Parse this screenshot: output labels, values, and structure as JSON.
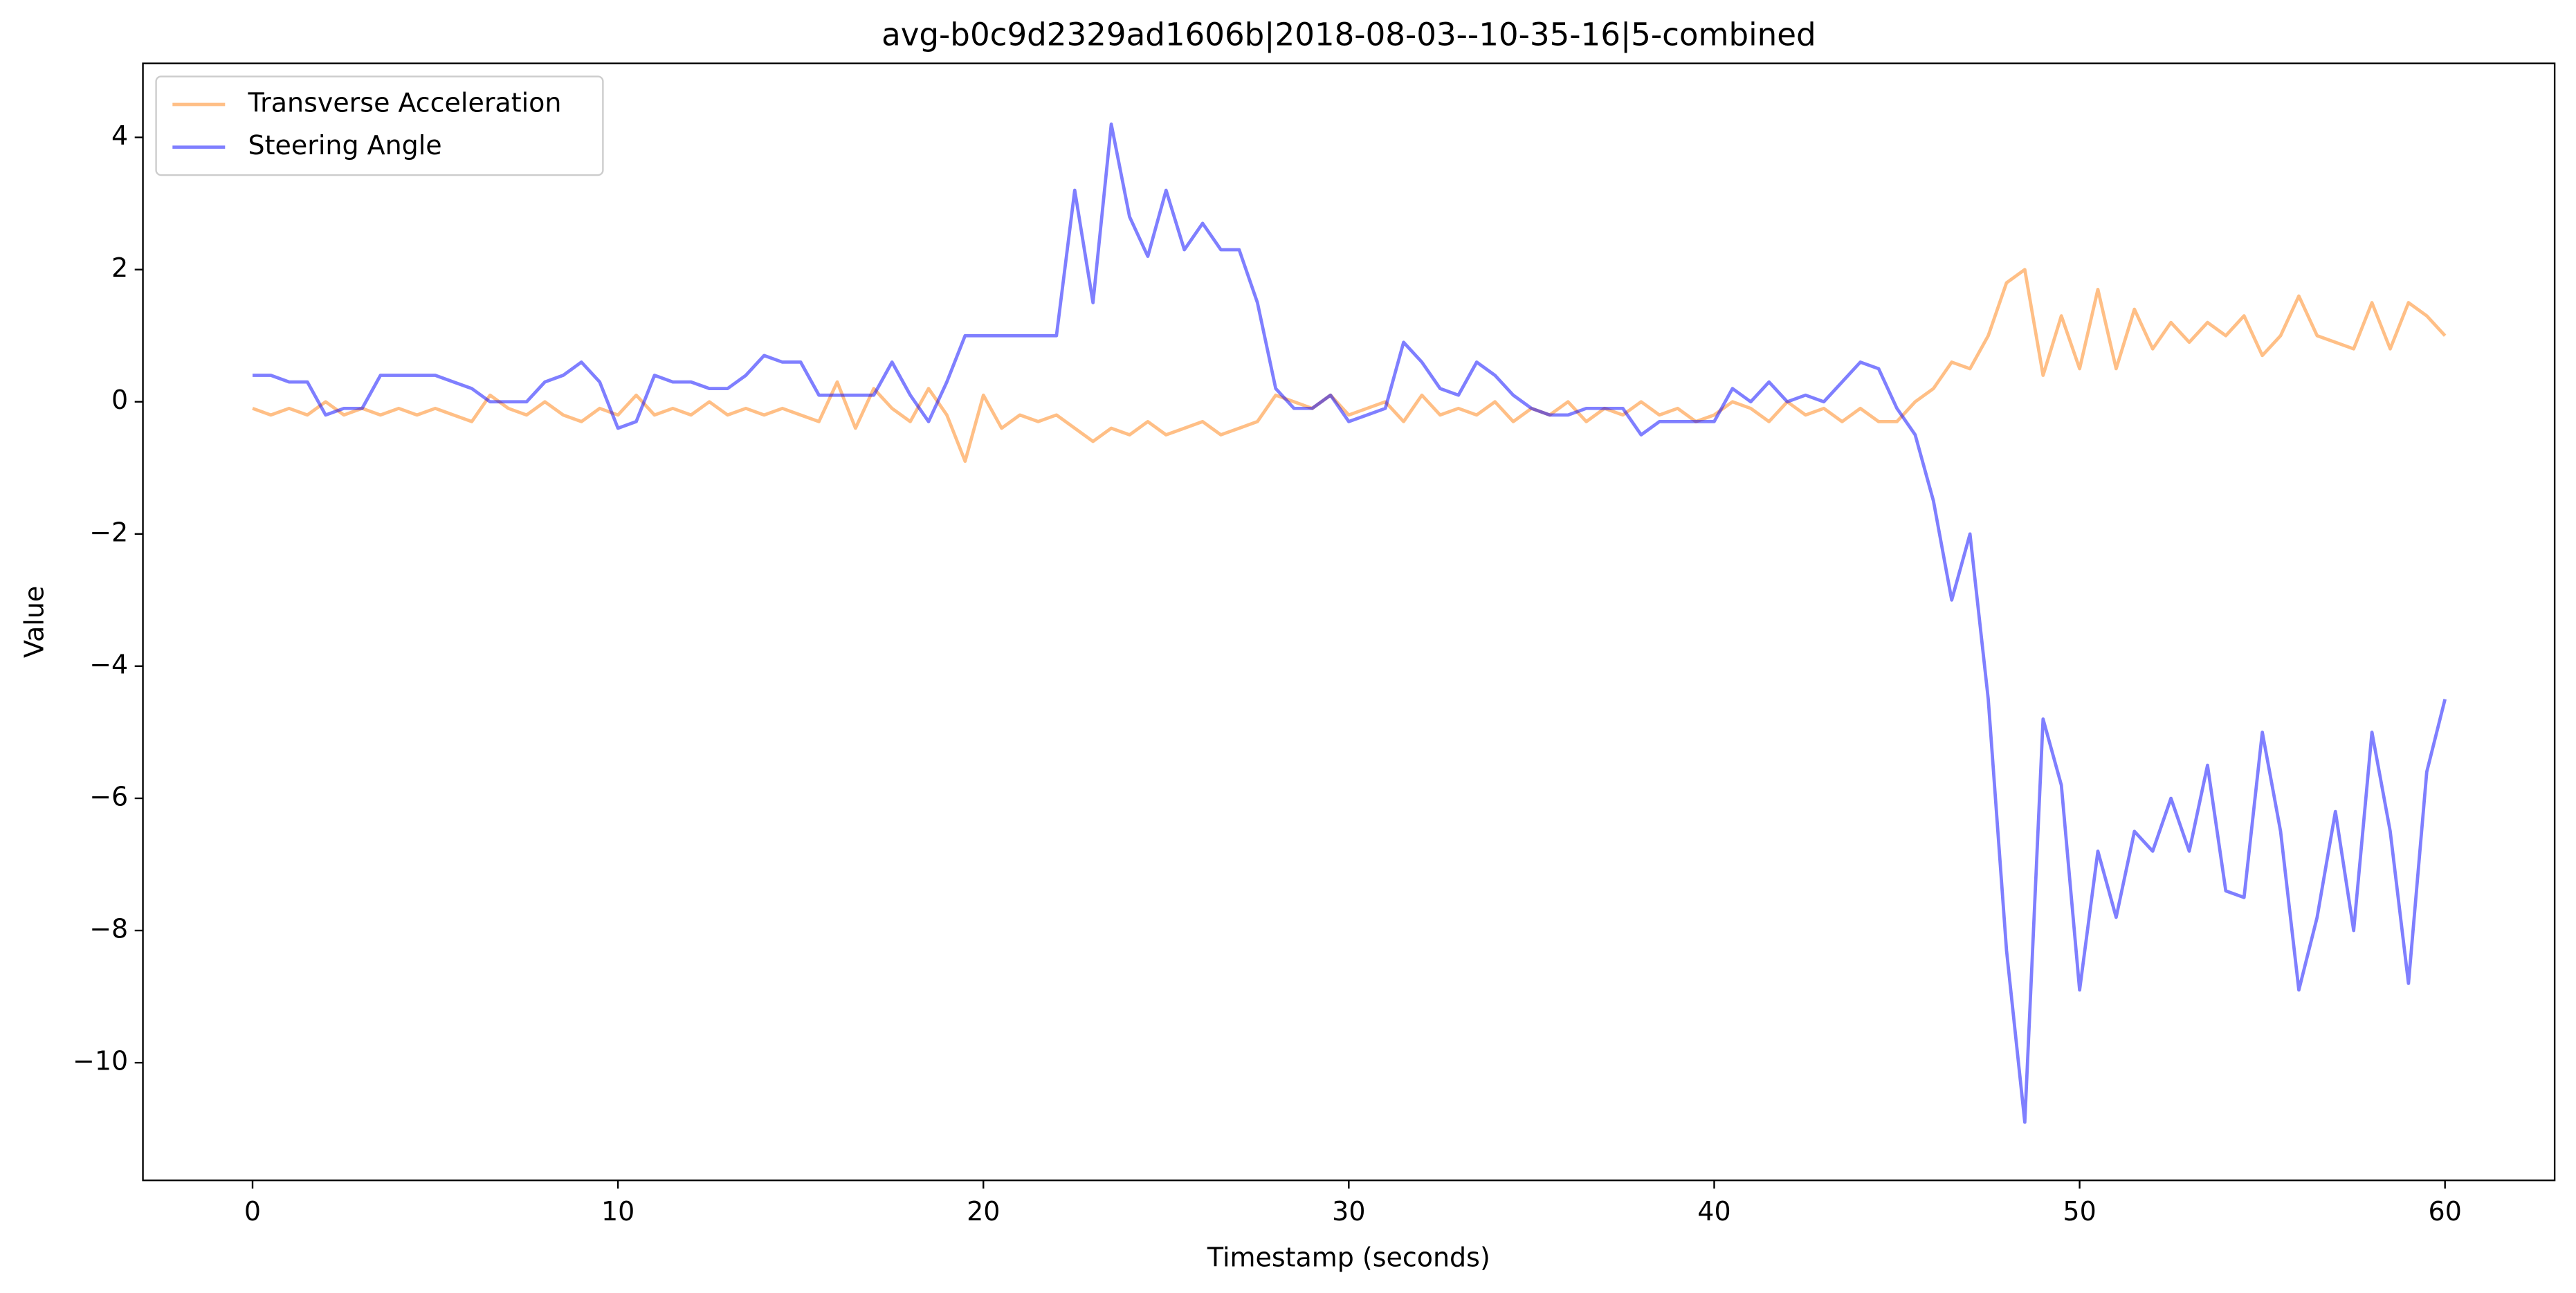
{
  "chart_data": {
    "type": "line",
    "title": "avg-b0c9d2329ad1606b|2018-08-03--10-35-16|5-combined",
    "x_label": "Timestamp (seconds)",
    "y_label": "Value",
    "xlim": [
      -3,
      63
    ],
    "ylim": [
      -11.78,
      5.12
    ],
    "xticks": [
      0,
      10,
      20,
      30,
      40,
      50,
      60
    ],
    "yticks": [
      {
        "value": -10,
        "label": "−10"
      },
      {
        "value": -8,
        "label": "−8"
      },
      {
        "value": -6,
        "label": "−6"
      },
      {
        "value": -4,
        "label": "−4"
      },
      {
        "value": -2,
        "label": "−2"
      },
      0,
      2,
      4
    ],
    "legend": "upper left",
    "grid": false,
    "x": [
      0,
      0.5,
      1,
      1.5,
      2,
      2.5,
      3,
      3.5,
      4,
      4.5,
      5,
      5.5,
      6,
      6.5,
      7,
      7.5,
      8,
      8.5,
      9,
      9.5,
      10,
      10.5,
      11,
      11.5,
      12,
      12.5,
      13,
      13.5,
      14,
      14.5,
      15,
      15.5,
      16,
      16.5,
      17,
      17.5,
      18,
      18.5,
      19,
      19.5,
      20,
      20.5,
      21,
      21.5,
      22,
      22.5,
      23,
      23.5,
      24,
      24.5,
      25,
      25.5,
      26,
      26.5,
      27,
      27.5,
      28,
      28.5,
      29,
      29.5,
      30,
      30.5,
      31,
      31.5,
      32,
      32.5,
      33,
      33.5,
      34,
      34.5,
      35,
      35.5,
      36,
      36.5,
      37,
      37.5,
      38,
      38.5,
      39,
      39.5,
      40,
      40.5,
      41,
      41.5,
      42,
      42.5,
      43,
      43.5,
      44,
      44.5,
      45,
      45.5,
      46,
      46.5,
      47,
      47.5,
      48,
      48.5,
      49,
      49.5,
      50,
      50.5,
      51,
      51.5,
      52,
      52.5,
      53,
      53.5,
      54,
      54.5,
      55,
      55.5,
      56,
      56.5,
      57,
      57.5,
      58,
      58.5,
      59,
      59.5,
      60
    ],
    "series": [
      {
        "name": "Transverse Acceleration",
        "color": "#ff7f0e",
        "values": [
          -0.1,
          -0.2,
          -0.1,
          -0.2,
          0,
          -0.2,
          -0.1,
          -0.2,
          -0.1,
          -0.2,
          -0.1,
          -0.2,
          -0.3,
          0.1,
          -0.1,
          -0.2,
          0,
          -0.2,
          -0.3,
          -0.1,
          -0.2,
          0.1,
          -0.2,
          -0.1,
          -0.2,
          0,
          -0.2,
          -0.1,
          -0.2,
          -0.1,
          -0.2,
          -0.3,
          0.3,
          -0.4,
          0.2,
          -0.1,
          -0.3,
          0.2,
          -0.2,
          -0.9,
          0.1,
          -0.4,
          -0.2,
          -0.3,
          -0.2,
          -0.4,
          -0.6,
          -0.4,
          -0.5,
          -0.3,
          -0.5,
          -0.4,
          -0.3,
          -0.5,
          -0.4,
          -0.3,
          0.1,
          0,
          -0.1,
          0.1,
          -0.2,
          -0.1,
          0,
          -0.3,
          0.1,
          -0.2,
          -0.1,
          -0.2,
          0,
          -0.3,
          -0.1,
          -0.2,
          0,
          -0.3,
          -0.1,
          -0.2,
          0,
          -0.2,
          -0.1,
          -0.3,
          -0.2,
          0,
          -0.1,
          -0.3,
          0,
          -0.2,
          -0.1,
          -0.3,
          -0.1,
          -0.3,
          -0.3,
          0,
          0.2,
          0.6,
          0.5,
          1,
          1.8,
          2,
          0.4,
          1.3,
          0.5,
          1.7,
          0.5,
          1.4,
          0.8,
          1.2,
          0.9,
          1.2,
          1,
          1.3,
          0.7,
          1,
          1.6,
          1,
          0.9,
          0.8,
          1.5,
          0.8,
          1.5,
          1.3,
          1
        ]
      },
      {
        "name": "Steering Angle",
        "color": "#0000ff",
        "values": [
          0.4,
          0.4,
          0.3,
          0.3,
          -0.2,
          -0.1,
          -0.1,
          0.4,
          0.4,
          0.4,
          0.4,
          0.3,
          0.2,
          0,
          0,
          0,
          0.3,
          0.4,
          0.6,
          0.3,
          -0.4,
          -0.3,
          0.4,
          0.3,
          0.3,
          0.2,
          0.2,
          0.4,
          0.7,
          0.6,
          0.6,
          0.1,
          0.1,
          0.1,
          0.1,
          0.6,
          0.1,
          -0.3,
          0.3,
          1,
          1,
          1,
          1,
          1,
          1,
          3.2,
          1.5,
          4.2,
          2.8,
          2.2,
          3.2,
          2.3,
          2.7,
          2.3,
          2.3,
          1.5,
          0.2,
          -0.1,
          -0.1,
          0.1,
          -0.3,
          -0.2,
          -0.1,
          0.9,
          0.6,
          0.2,
          0.1,
          0.6,
          0.4,
          0.1,
          -0.1,
          -0.2,
          -0.2,
          -0.1,
          -0.1,
          -0.1,
          -0.5,
          -0.3,
          -0.3,
          -0.3,
          -0.3,
          0.2,
          0,
          0.3,
          0,
          0.1,
          0,
          0.3,
          0.6,
          0.5,
          -0.1,
          -0.5,
          -1.5,
          -3,
          -2,
          -4.5,
          -8.3,
          -10.9,
          -4.8,
          -5.8,
          -8.9,
          -6.8,
          -7.8,
          -6.5,
          -6.8,
          -6,
          -6.8,
          -5.5,
          -7.4,
          -7.5,
          -5,
          -6.5,
          -8.9,
          -7.8,
          -6.2,
          -8,
          -5,
          -6.5,
          -8.8,
          -5.6,
          -4.5
        ]
      }
    ]
  }
}
